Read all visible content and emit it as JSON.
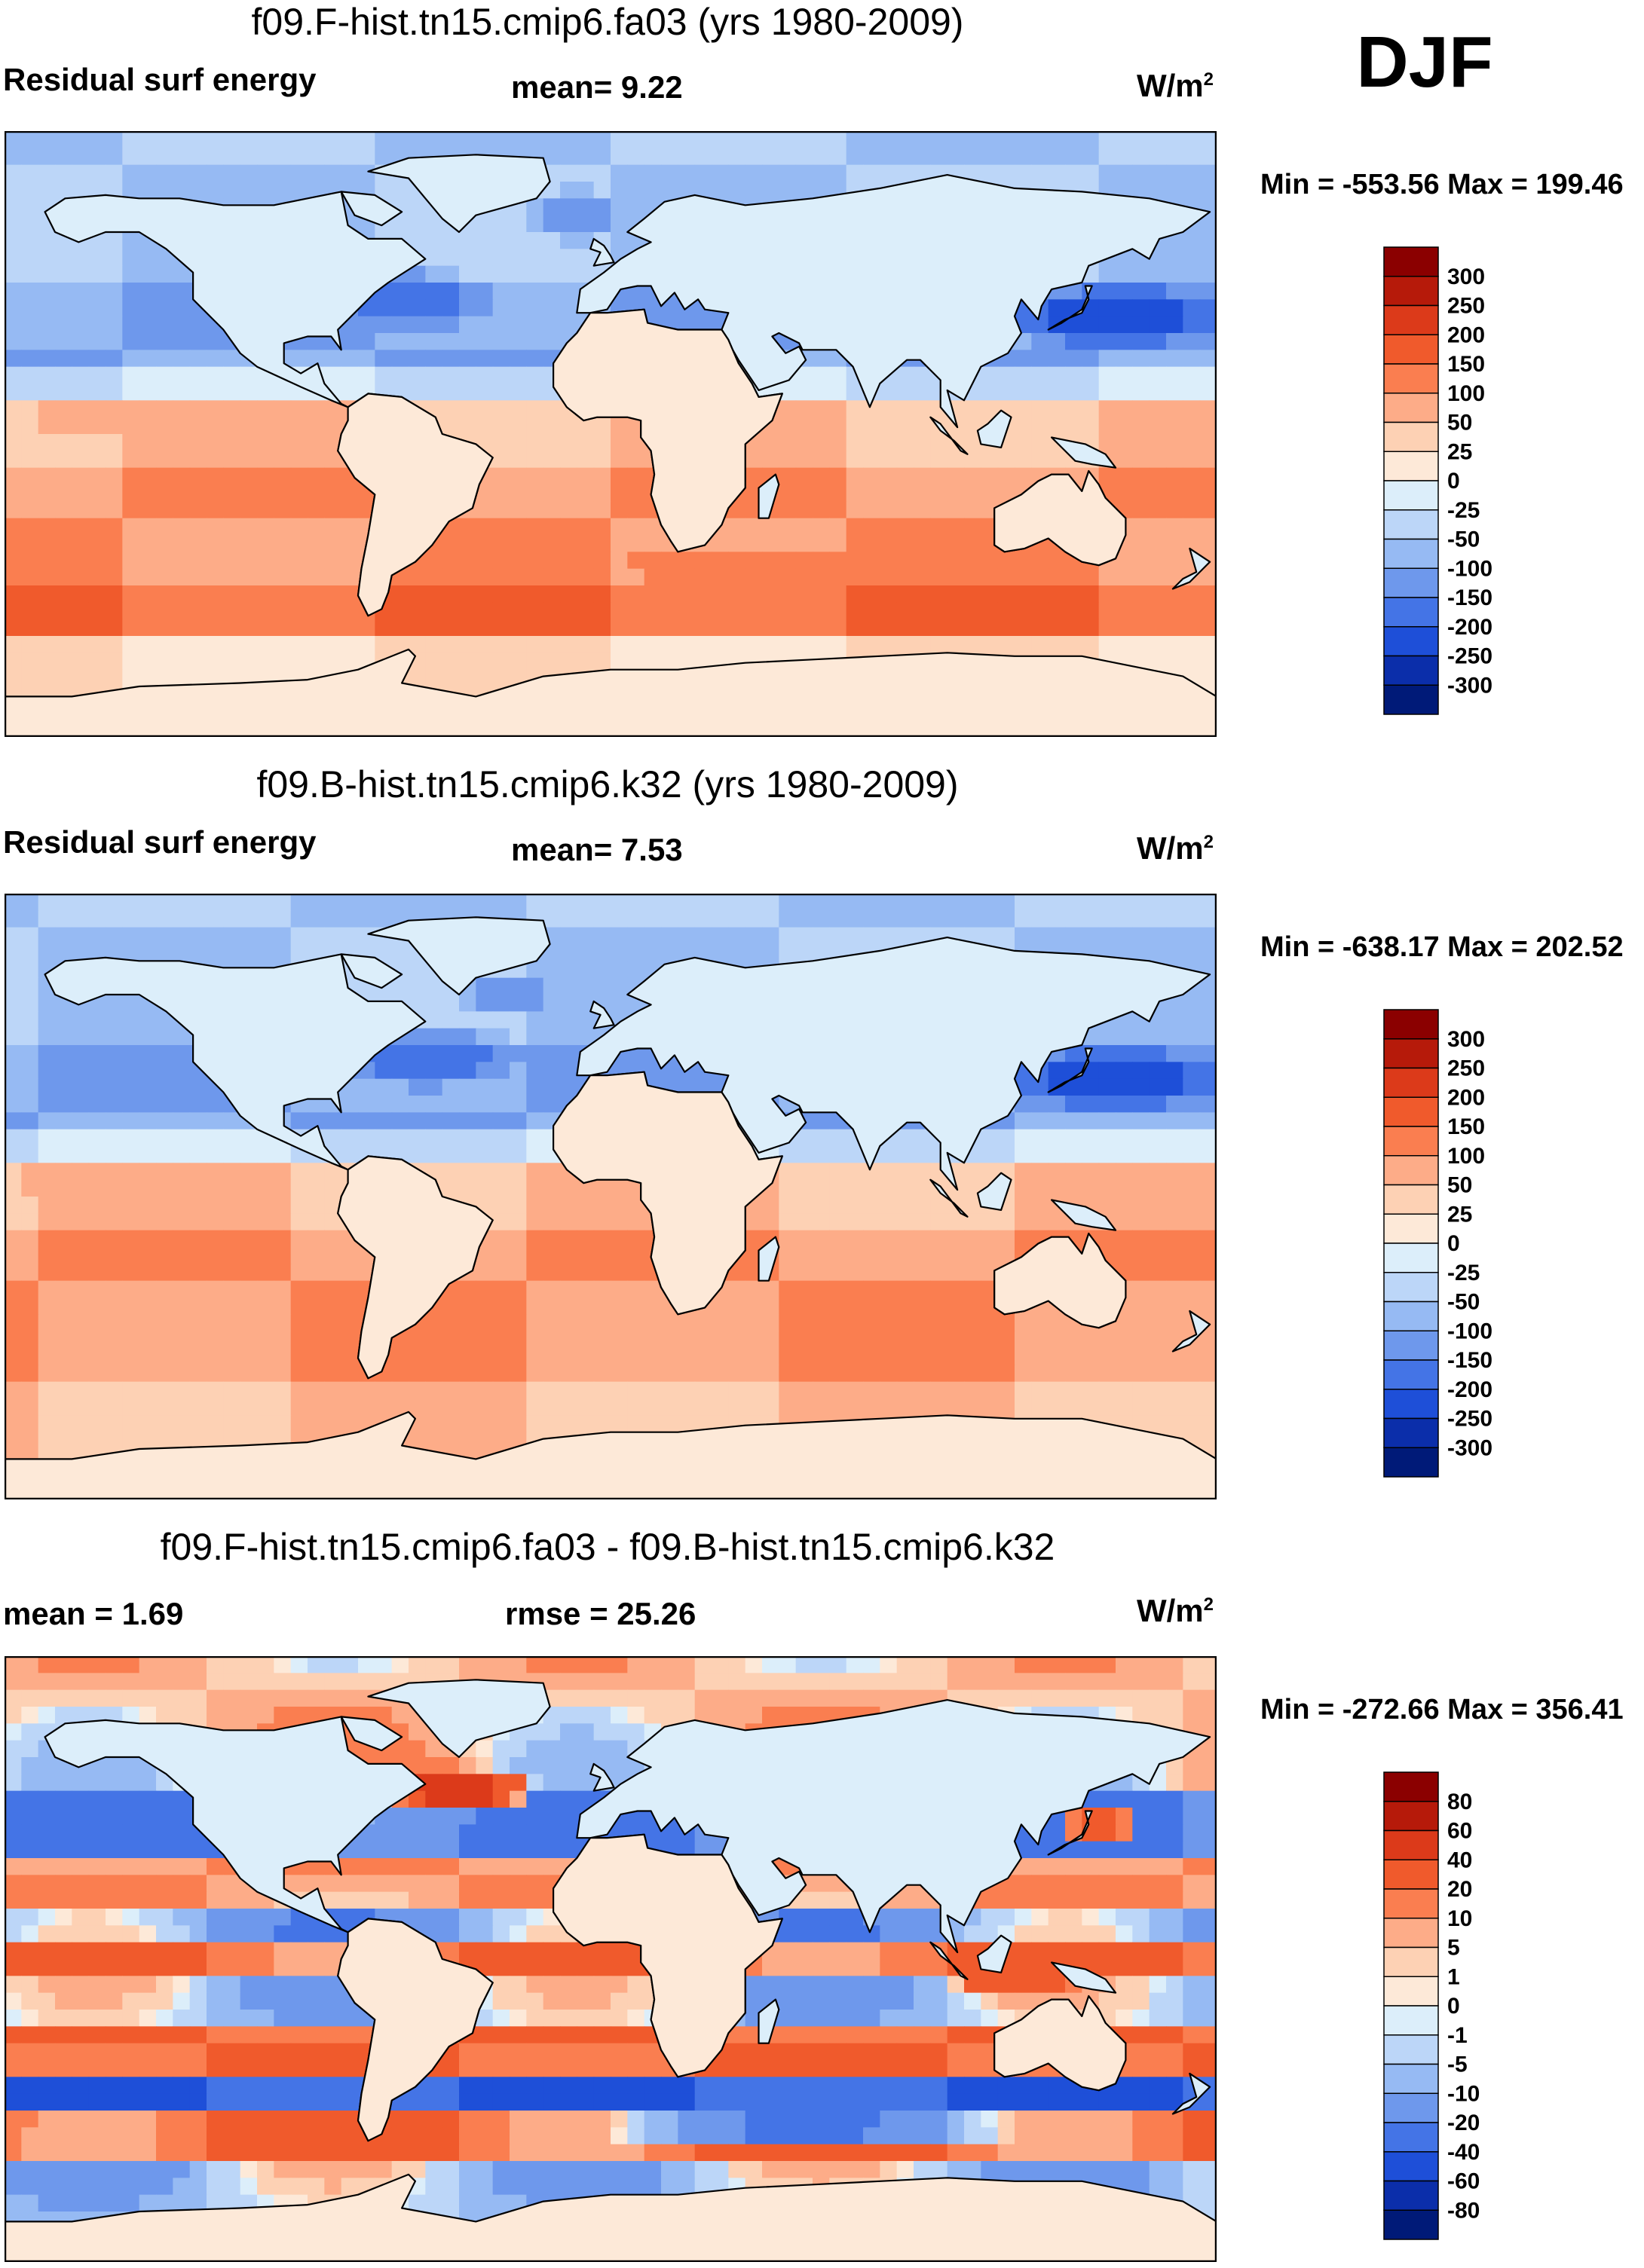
{
  "season": "DJF",
  "panels": [
    {
      "title": "f09.F-hist.tn15.cmip6.fa03 (yrs 1980-2009)",
      "left_label": "Residual surf energy",
      "center_label": "mean=   9.22",
      "units": "W/m",
      "units_exp": "2",
      "minmax": "Min = -553.56 Max = 199.46"
    },
    {
      "title": "f09.B-hist.tn15.cmip6.k32 (yrs 1980-2009)",
      "left_label": "Residual surf energy",
      "center_label": "mean=   7.53",
      "units": "W/m",
      "units_exp": "2",
      "minmax": "Min = -638.17 Max = 202.52"
    },
    {
      "title": "f09.F-hist.tn15.cmip6.fa03 - f09.B-hist.tn15.cmip6.k32",
      "left_label": "mean =   1.69",
      "center_label": "rmse =  25.26",
      "units": "W/m",
      "units_exp": "2",
      "minmax": "Min = -272.66 Max = 356.41"
    }
  ],
  "chart_data": [
    {
      "type": "heatmap",
      "title": "f09.F-hist.tn15.cmip6.fa03 (yrs 1980-2009)",
      "variable": "Residual surf energy",
      "units": "W/m2",
      "mean": 9.22,
      "min": -553.56,
      "max": 199.46,
      "colorbar_levels": [
        "300",
        "250",
        "200",
        "150",
        "100",
        "50",
        "25",
        "0",
        "-25",
        "-50",
        "-100",
        "-150",
        "-200",
        "-250",
        "-300"
      ],
      "colors": [
        "#8b0000",
        "#b61a0a",
        "#dc3a1a",
        "#f05a2c",
        "#fa7e50",
        "#fdac88",
        "#fdd1b4",
        "#fde9d8",
        "#dceefa",
        "#bcd6f8",
        "#96baf3",
        "#6e98ec",
        "#4474e6",
        "#1e4fd8",
        "#0b2eaa",
        "#001a78"
      ]
    },
    {
      "type": "heatmap",
      "title": "f09.B-hist.tn15.cmip6.k32 (yrs 1980-2009)",
      "variable": "Residual surf energy",
      "units": "W/m2",
      "mean": 7.53,
      "min": -638.17,
      "max": 202.52,
      "colorbar_levels": [
        "300",
        "250",
        "200",
        "150",
        "100",
        "50",
        "25",
        "0",
        "-25",
        "-50",
        "-100",
        "-150",
        "-200",
        "-250",
        "-300"
      ],
      "colors": [
        "#8b0000",
        "#b61a0a",
        "#dc3a1a",
        "#f05a2c",
        "#fa7e50",
        "#fdac88",
        "#fdd1b4",
        "#fde9d8",
        "#dceefa",
        "#bcd6f8",
        "#96baf3",
        "#6e98ec",
        "#4474e6",
        "#1e4fd8",
        "#0b2eaa",
        "#001a78"
      ]
    },
    {
      "type": "heatmap",
      "title": "f09.F-hist.tn15.cmip6.fa03 - f09.B-hist.tn15.cmip6.k32",
      "units": "W/m2",
      "mean": 1.69,
      "rmse": 25.26,
      "min": -272.66,
      "max": 356.41,
      "colorbar_levels": [
        "80",
        "60",
        "40",
        "20",
        "10",
        "5",
        "1",
        "0",
        "-1",
        "-5",
        "-10",
        "-20",
        "-40",
        "-60",
        "-80"
      ],
      "colors": [
        "#8b0000",
        "#b61a0a",
        "#dc3a1a",
        "#f05a2c",
        "#fa7e50",
        "#fdac88",
        "#fdd1b4",
        "#fde9d8",
        "#dceefa",
        "#bcd6f8",
        "#96baf3",
        "#6e98ec",
        "#4474e6",
        "#1e4fd8",
        "#0b2eaa",
        "#001a78"
      ]
    }
  ]
}
